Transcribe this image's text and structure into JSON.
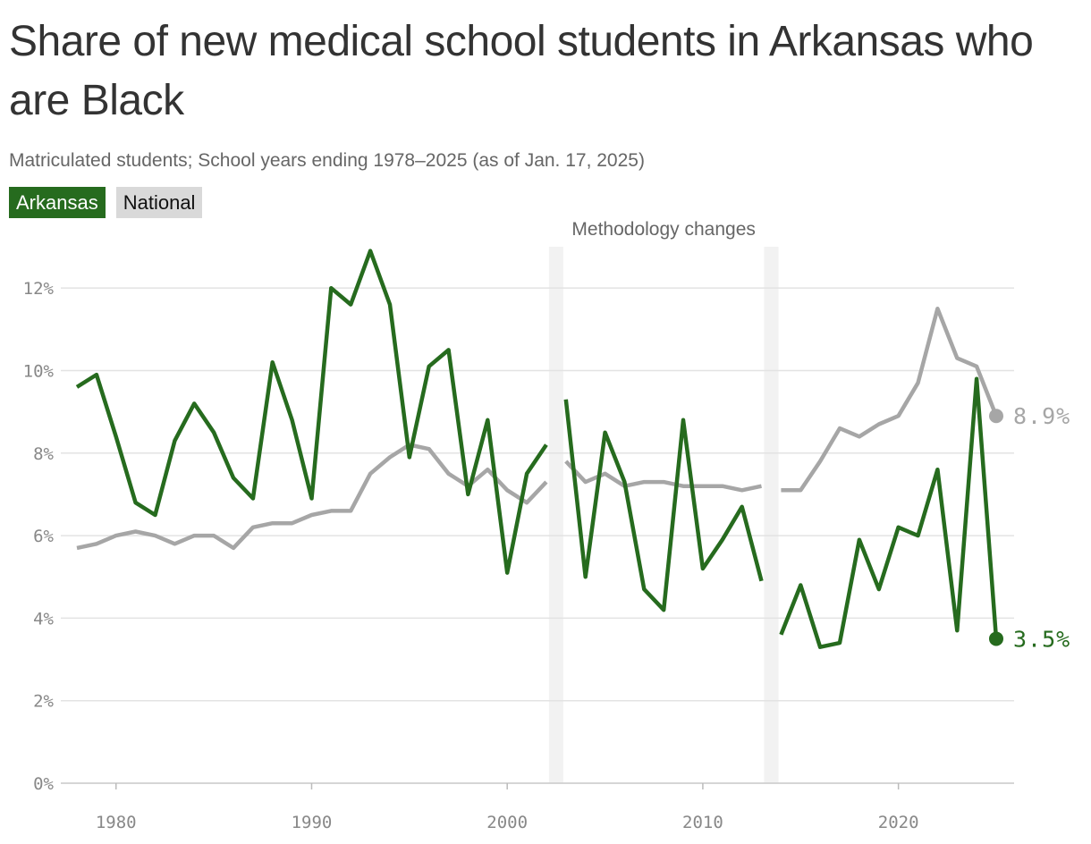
{
  "header": {
    "title": "Share of new medical school students in Arkansas who are Black",
    "subtitle": "Matriculated students; School years ending 1978–2025 (as of Jan. 17, 2025)"
  },
  "legend": {
    "arkansas": "Arkansas",
    "national": "National"
  },
  "colors": {
    "arkansas": "#266b1e",
    "national": "#a6a6a6",
    "grid": "#e3e3e3",
    "band": "#f2f2f2"
  },
  "chart_data": {
    "type": "line",
    "title": "Share of new medical school students in Arkansas who are Black",
    "subtitle": "Matriculated students; School years ending 1978–2025 (as of Jan. 17, 2025)",
    "xlabel": "",
    "ylabel": "",
    "xlim": [
      1977,
      2026
    ],
    "ylim": [
      0,
      13
    ],
    "x_ticks": [
      1980,
      1990,
      2000,
      2010,
      2020
    ],
    "x_tick_labels": [
      "1980",
      "1990",
      "2000",
      "2010",
      "2020"
    ],
    "y_ticks": [
      0,
      2,
      4,
      6,
      8,
      10,
      12
    ],
    "y_tick_labels": [
      "0%",
      "2%",
      "4%",
      "6%",
      "8%",
      "10%",
      "12%"
    ],
    "grid": true,
    "legend_position": "top-left",
    "annotation": {
      "label": "Methodology changes",
      "breaks": [
        2002.5,
        2013.5
      ]
    },
    "series": [
      {
        "name": "Arkansas",
        "color": "#266b1e",
        "end_label": "3.5%",
        "segments": [
          [
            [
              1978,
              9.6
            ],
            [
              1979,
              9.9
            ],
            [
              1980,
              8.4
            ],
            [
              1981,
              6.8
            ],
            [
              1982,
              6.5
            ],
            [
              1983,
              8.3
            ],
            [
              1984,
              9.2
            ],
            [
              1985,
              8.5
            ],
            [
              1986,
              7.4
            ],
            [
              1987,
              6.9
            ],
            [
              1988,
              10.2
            ],
            [
              1989,
              8.8
            ],
            [
              1990,
              6.9
            ],
            [
              1991,
              12.0
            ],
            [
              1992,
              11.6
            ],
            [
              1993,
              12.9
            ],
            [
              1994,
              11.6
            ],
            [
              1995,
              7.9
            ],
            [
              1996,
              10.1
            ],
            [
              1997,
              10.5
            ],
            [
              1998,
              7.0
            ],
            [
              1999,
              8.8
            ],
            [
              2000,
              5.1
            ],
            [
              2001,
              7.5
            ],
            [
              2002,
              8.2
            ]
          ],
          [
            [
              2003,
              9.3
            ],
            [
              2004,
              5.0
            ],
            [
              2005,
              8.5
            ],
            [
              2006,
              7.3
            ],
            [
              2007,
              4.7
            ],
            [
              2008,
              4.2
            ],
            [
              2009,
              8.8
            ],
            [
              2010,
              5.2
            ],
            [
              2011,
              5.9
            ],
            [
              2012,
              6.7
            ],
            [
              2013,
              4.9
            ]
          ],
          [
            [
              2014,
              3.6
            ],
            [
              2015,
              4.8
            ],
            [
              2016,
              3.3
            ],
            [
              2017,
              3.4
            ],
            [
              2018,
              5.9
            ],
            [
              2019,
              4.7
            ],
            [
              2020,
              6.2
            ],
            [
              2021,
              6.0
            ],
            [
              2022,
              7.6
            ],
            [
              2023,
              3.7
            ],
            [
              2024,
              9.8
            ],
            [
              2025,
              3.5
            ]
          ]
        ]
      },
      {
        "name": "National",
        "color": "#a6a6a6",
        "end_label": "8.9%",
        "segments": [
          [
            [
              1978,
              5.7
            ],
            [
              1979,
              5.8
            ],
            [
              1980,
              6.0
            ],
            [
              1981,
              6.1
            ],
            [
              1982,
              6.0
            ],
            [
              1983,
              5.8
            ],
            [
              1984,
              6.0
            ],
            [
              1985,
              6.0
            ],
            [
              1986,
              5.7
            ],
            [
              1987,
              6.2
            ],
            [
              1988,
              6.3
            ],
            [
              1989,
              6.3
            ],
            [
              1990,
              6.5
            ],
            [
              1991,
              6.6
            ],
            [
              1992,
              6.6
            ],
            [
              1993,
              7.5
            ],
            [
              1994,
              7.9
            ],
            [
              1995,
              8.2
            ],
            [
              1996,
              8.1
            ],
            [
              1997,
              7.5
            ],
            [
              1998,
              7.2
            ],
            [
              1999,
              7.6
            ],
            [
              2000,
              7.1
            ],
            [
              2001,
              6.8
            ],
            [
              2002,
              7.3
            ]
          ],
          [
            [
              2003,
              7.8
            ],
            [
              2004,
              7.3
            ],
            [
              2005,
              7.5
            ],
            [
              2006,
              7.2
            ],
            [
              2007,
              7.3
            ],
            [
              2008,
              7.3
            ],
            [
              2009,
              7.2
            ],
            [
              2010,
              7.2
            ],
            [
              2011,
              7.2
            ],
            [
              2012,
              7.1
            ],
            [
              2013,
              7.2
            ]
          ],
          [
            [
              2014,
              7.1
            ],
            [
              2015,
              7.1
            ],
            [
              2016,
              7.8
            ],
            [
              2017,
              8.6
            ],
            [
              2018,
              8.4
            ],
            [
              2019,
              8.7
            ],
            [
              2020,
              8.9
            ],
            [
              2021,
              9.7
            ],
            [
              2022,
              11.5
            ],
            [
              2023,
              10.3
            ],
            [
              2024,
              10.1
            ],
            [
              2025,
              8.9
            ]
          ]
        ]
      }
    ]
  }
}
